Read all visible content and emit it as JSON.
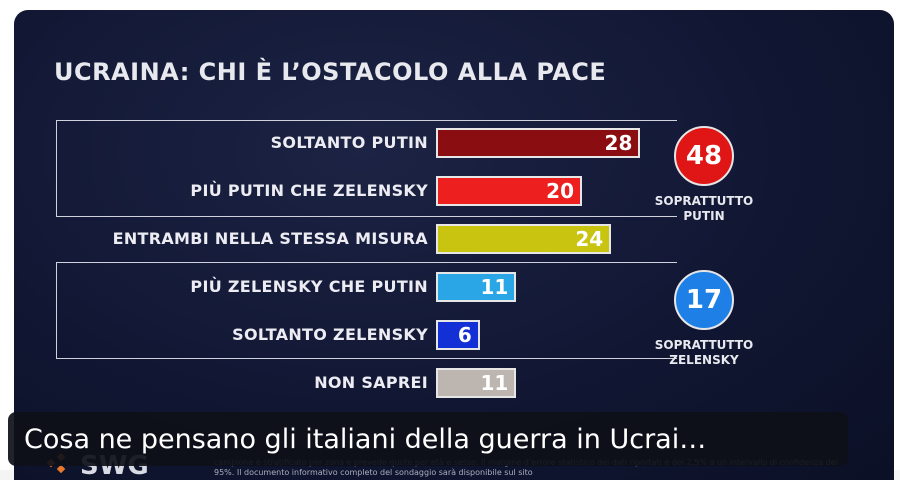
{
  "chart_data": {
    "type": "bar",
    "orientation": "horizontal",
    "title": "UCRAINA: CHI È L’OSTACOLO ALLA PACE",
    "categories": [
      "SOLTANTO PUTIN",
      "PIÙ PUTIN CHE ZELENSKY",
      "ENTRAMBI NELLA STESSA MISURA",
      "PIÙ ZELENSKY CHE PUTIN",
      "SOLTANTO ZELENSKY",
      "NON SAPREI"
    ],
    "values": [
      28,
      20,
      24,
      11,
      6,
      11
    ],
    "bar_colors": [
      "#8a0d12",
      "#ee1f1f",
      "#c9c40f",
      "#2aa6e6",
      "#1330d6",
      "#bdb5b0"
    ],
    "groups": [
      {
        "total": 48,
        "label": "SOPRATTUTTO\nPUTIN",
        "color": "#e01616",
        "rows": [
          0,
          1
        ]
      },
      {
        "total": 17,
        "label": "SOPRATTUTTO\nZELENSKY",
        "color": "#1e7fe6",
        "rows": [
          3,
          4
        ]
      }
    ]
  },
  "footer": {
    "methodology": "campione è stratificato per zona e prevede quote per età e sesso. Il margine d’errore statistico dei dati riportati è del 2,5% a un intervallo di confidenza del 95%. Il documento informativo completo del sondaggio sarà disponibile sul sito",
    "logo_text": "SWG"
  },
  "caption": "Cosa ne pensano gli italiani della guerra in Ucrai…"
}
